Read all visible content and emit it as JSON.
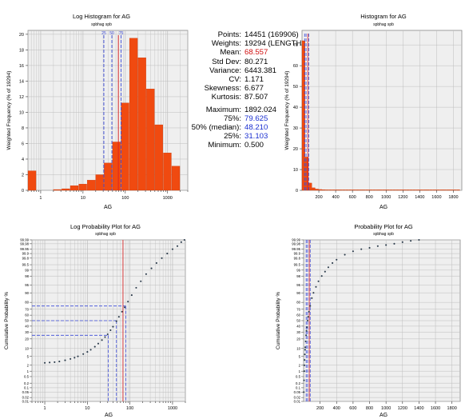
{
  "stats": {
    "rows": [
      {
        "label": "Points:",
        "value": "14451 (169906)",
        "color": "#000000"
      },
      {
        "label": "Weights:",
        "value": "19294 (LENGTH)",
        "color": "#000000"
      },
      {
        "label": "Mean:",
        "value": "68.557",
        "color": "#d01010"
      },
      {
        "label": "Std Dev:",
        "value": "80.271",
        "color": "#000000"
      },
      {
        "label": "Variance:",
        "value": "6443.381",
        "color": "#000000"
      },
      {
        "label": "CV:",
        "value": "1.171",
        "color": "#000000"
      },
      {
        "label": "Skewness:",
        "value": "6.677",
        "color": "#000000"
      },
      {
        "label": "Kurtosis:",
        "value": "87.507",
        "color": "#000000"
      }
    ],
    "rows2": [
      {
        "label": "Maximum:",
        "value": "1892.024",
        "color": "#000000"
      },
      {
        "label": "75%:",
        "value": "79.625",
        "color": "#1a2fd0"
      },
      {
        "label": "50% (median):",
        "value": "48.210",
        "color": "#1a2fd0"
      },
      {
        "label": "25%:",
        "value": "31.103",
        "color": "#1a2fd0"
      },
      {
        "label": "Minimum:",
        "value": "0.500",
        "color": "#000000"
      }
    ]
  },
  "chart_data": [
    {
      "type": "bar",
      "title": "Log Histogram for AG",
      "subtitle": "spbhag spb",
      "xlabel": "AG",
      "ylabel": "Weighted Frequency (% of 19294)",
      "xscale": "log",
      "xlim": [
        0.5,
        3000
      ],
      "ylim": [
        0,
        20.5
      ],
      "xticks": [
        1,
        10,
        100,
        1000
      ],
      "yticks": [
        0,
        2,
        4,
        6,
        8,
        10,
        12,
        14,
        16,
        18,
        20
      ],
      "bin_log_edges": [
        -0.3,
        -0.1,
        0.1,
        0.3,
        0.5,
        0.7,
        0.9,
        1.1,
        1.3,
        1.5,
        1.7,
        1.9,
        2.1,
        2.3,
        2.5,
        2.7,
        2.9,
        3.1,
        3.3
      ],
      "values": [
        2.5,
        0,
        0,
        0.1,
        0.2,
        0.6,
        0.8,
        1.3,
        2.0,
        3.5,
        6.2,
        11.2,
        19.5,
        17.0,
        13.0,
        8.4,
        4.8,
        3.1
      ],
      "marker_labels": [
        "25",
        "50",
        "75"
      ],
      "marker_values": [
        31.103,
        48.21,
        79.625
      ],
      "mean": 68.557,
      "grid": true
    },
    {
      "type": "bar",
      "title": "Histogram for AG",
      "subtitle": "spbhag spb",
      "xlabel": "AG",
      "ylabel": "Weighted Frequency (% of 19294)",
      "xlim": [
        0,
        1900
      ],
      "ylim": [
        0,
        77
      ],
      "xticks": [
        200,
        400,
        600,
        800,
        1000,
        1200,
        1400,
        1600,
        1800
      ],
      "yticks": [
        0,
        10,
        20,
        30,
        40,
        50,
        60,
        70
      ],
      "bin_width": 40,
      "values": [
        72,
        16,
        3.5,
        1.2,
        0.6,
        0.4,
        0.3,
        0.2,
        0.15,
        0.1,
        0.1,
        0.1,
        0.1,
        0.08,
        0.08,
        0.07,
        0.06,
        0.05,
        0.05,
        0.04,
        0.04,
        0.04,
        0.03,
        0.03,
        0.03,
        0.03,
        0.02,
        0.02,
        0.02,
        0.02,
        0.02,
        0.02,
        0.02,
        0.02,
        0.02,
        0.02,
        0.02,
        0.02,
        0.02,
        0.02,
        0.02,
        0.02,
        0.02,
        0.02,
        0.02,
        0.02,
        0.02
      ],
      "marker_values": [
        31.103,
        48.21,
        79.625
      ],
      "mean": 68.557,
      "grid": true
    },
    {
      "type": "scatter",
      "title": "Log Probability Plot for AG",
      "subtitle": "spbhag spb",
      "xlabel": "AG",
      "ylabel": "Cumulative Probability %",
      "xscale": "log",
      "xlim": [
        0.5,
        2000
      ],
      "xticks": [
        1,
        10,
        100,
        1000
      ],
      "yticks": [
        0.01,
        0.02,
        0.05,
        0.1,
        0.2,
        0.5,
        1,
        2,
        5,
        10,
        20,
        30,
        40,
        50,
        60,
        70,
        80,
        90,
        95,
        98,
        99,
        99.5,
        99.8,
        99.9,
        99.95,
        99.98,
        99.99
      ],
      "x": [
        1,
        1.3,
        1.7,
        2.2,
        3,
        4,
        5,
        6,
        8,
        10,
        12,
        15,
        18,
        22,
        26,
        30,
        35,
        40,
        48,
        55,
        65,
        75,
        90,
        110,
        140,
        180,
        240,
        320,
        420,
        560,
        750,
        1000,
        1300,
        1600,
        1900
      ],
      "y": [
        2.6,
        2.7,
        2.8,
        3.0,
        3.4,
        3.9,
        4.4,
        5.0,
        6.2,
        7.5,
        9.0,
        11.5,
        14.5,
        18.5,
        22.5,
        26.5,
        33,
        39,
        49,
        57,
        66,
        73,
        81,
        88,
        93.5,
        96.5,
        98.4,
        99.2,
        99.6,
        99.8,
        99.9,
        99.95,
        99.97,
        99.985,
        99.99
      ],
      "quartile_x": [
        31.103,
        48.21,
        79.625
      ],
      "quartile_p": [
        25,
        50,
        75
      ],
      "mean": 68.557,
      "grid": true
    },
    {
      "type": "scatter",
      "title": "Probability Plot for AG",
      "subtitle": "spbhag spb",
      "xlabel": "AG",
      "ylabel": "Cumulative Probability %",
      "xlim": [
        0,
        1900
      ],
      "xticks": [
        200,
        400,
        600,
        800,
        1000,
        1200,
        1400,
        1600,
        1800
      ],
      "yticks": [
        0.01,
        0.02,
        0.05,
        0.1,
        0.2,
        0.5,
        1,
        2,
        5,
        10,
        20,
        30,
        40,
        50,
        60,
        70,
        80,
        90,
        95,
        98,
        99,
        99.5,
        99.8,
        99.9,
        99.95,
        99.98,
        99.99
      ],
      "x": [
        2,
        5,
        8,
        10,
        12,
        15,
        18,
        20,
        25,
        30,
        35,
        40,
        48,
        55,
        65,
        80,
        100,
        120,
        150,
        180,
        220,
        260,
        300,
        350,
        400,
        500,
        600,
        700,
        800,
        900,
        1000,
        1100,
        1200,
        1300,
        1400
      ],
      "y": [
        0.05,
        0.3,
        1,
        2,
        3.5,
        6,
        9,
        11,
        17,
        25,
        32,
        38,
        50,
        57,
        66,
        75,
        85,
        90,
        94,
        96.5,
        98,
        98.8,
        99.3,
        99.6,
        99.75,
        99.88,
        99.93,
        99.95,
        99.96,
        99.97,
        99.975,
        99.98,
        99.985,
        99.988,
        99.99
      ],
      "quartile_x": [
        31.103,
        48.21,
        79.625
      ],
      "mean": 68.557,
      "grid": true
    }
  ]
}
